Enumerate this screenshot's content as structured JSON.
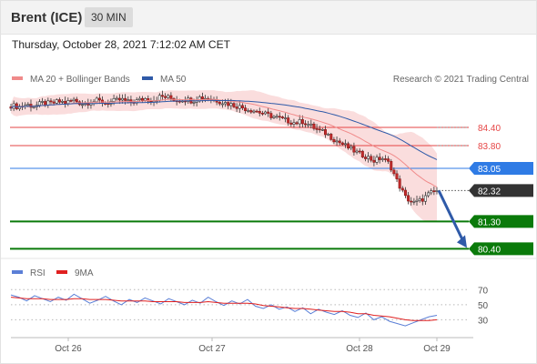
{
  "header": {
    "instrument": "Brent (ICE)",
    "interval": "30 MIN"
  },
  "datetime": "Thursday, October 28, 2021 7:12:02 AM CET",
  "chart_data": [
    {
      "type": "candlestick",
      "title": "Brent (ICE)",
      "legend": [
        {
          "name": "MA 20 + Bollinger Bands",
          "color": "#f08a8a"
        },
        {
          "name": "MA 50",
          "color": "#2f5aa8"
        }
      ],
      "credit": "Research © 2021 Trading Central",
      "x_ticks": [
        "Oct 26",
        "Oct 27",
        "Oct 28",
        "Oct 29"
      ],
      "levels": [
        {
          "label": "84.40",
          "value": 84.4,
          "kind": "resistance",
          "color": "#e64545"
        },
        {
          "label": "83.80",
          "value": 83.8,
          "kind": "resistance",
          "color": "#e64545"
        },
        {
          "label": "83.05",
          "value": 83.05,
          "kind": "pivot",
          "color": "#2f7be5"
        },
        {
          "label": "82.32",
          "value": 82.32,
          "kind": "last-price",
          "color": "#333333"
        },
        {
          "label": "81.30",
          "value": 81.3,
          "kind": "support",
          "color": "#0a7a0a"
        },
        {
          "label": "80.40",
          "value": 80.4,
          "kind": "support",
          "color": "#0a7a0a"
        }
      ],
      "ylim": [
        80.2,
        85.6
      ],
      "close_path": [
        85.12,
        85.08,
        85.15,
        85.1,
        85.2,
        85.18,
        85.25,
        85.22,
        85.3,
        85.18,
        85.24,
        85.28,
        85.2,
        85.26,
        85.32,
        85.22,
        85.28,
        85.35,
        85.3,
        85.42,
        85.38,
        85.3,
        85.34,
        85.28,
        85.4,
        85.36,
        85.3,
        85.22,
        85.15,
        85.08,
        85.0,
        84.95,
        84.85,
        84.78,
        84.7,
        84.62,
        84.55,
        84.6,
        84.45,
        84.3,
        84.2,
        84.0,
        83.85,
        83.7,
        83.55,
        83.45,
        83.3,
        83.4,
        83.2,
        82.6,
        82.1,
        81.9,
        82.0,
        82.2,
        82.32
      ],
      "projection": {
        "from": 82.32,
        "to": 80.4
      }
    },
    {
      "type": "line",
      "title": "RSI",
      "legend": [
        {
          "name": "RSI",
          "color": "#5b7fd6"
        },
        {
          "name": "9MA",
          "color": "#e02020"
        }
      ],
      "y_ticks": [
        70,
        50,
        30
      ],
      "ylim": [
        10,
        80
      ],
      "rsi": [
        63,
        60,
        55,
        62,
        58,
        54,
        60,
        56,
        64,
        58,
        52,
        56,
        61,
        55,
        50,
        57,
        53,
        59,
        55,
        51,
        58,
        54,
        50,
        56,
        52,
        60,
        54,
        49,
        55,
        51,
        57,
        48,
        45,
        50,
        44,
        47,
        41,
        46,
        38,
        44,
        40,
        37,
        42,
        36,
        33,
        39,
        30,
        34,
        28,
        25,
        22,
        26,
        30,
        34,
        36
      ],
      "ma9": [
        60,
        59,
        58,
        58,
        58,
        57,
        57,
        57,
        58,
        58,
        57,
        57,
        57,
        56,
        55,
        55,
        55,
        55,
        54,
        54,
        54,
        54,
        53,
        53,
        53,
        54,
        53,
        52,
        52,
        52,
        52,
        51,
        49,
        48,
        47,
        46,
        45,
        45,
        44,
        43,
        42,
        41,
        41,
        40,
        38,
        38,
        36,
        35,
        34,
        32,
        30,
        29,
        29,
        29,
        30
      ]
    }
  ]
}
